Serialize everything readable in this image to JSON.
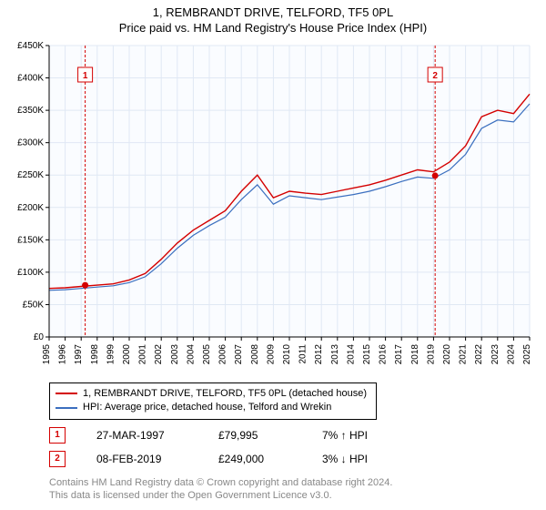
{
  "title_line1": "1, REMBRANDT DRIVE, TELFORD, TF5 0PL",
  "title_line2": "Price paid vs. HM Land Registry's House Price Index (HPI)",
  "chart": {
    "type": "line",
    "background_color": "#ffffff",
    "plot_bg_color": "#f5f9ff",
    "plot_bg_alpha": 0.55,
    "grid_color": "#e0e8f4",
    "axis_color": "#000000",
    "x_years": [
      1995,
      1996,
      1997,
      1998,
      1999,
      2000,
      2001,
      2002,
      2003,
      2004,
      2005,
      2006,
      2007,
      2008,
      2009,
      2010,
      2011,
      2012,
      2013,
      2014,
      2015,
      2016,
      2017,
      2018,
      2019,
      2020,
      2021,
      2022,
      2023,
      2024,
      2025
    ],
    "ylim": [
      0,
      450000
    ],
    "ytick_step": 50000,
    "ytick_labels": [
      "£0",
      "£50K",
      "£100K",
      "£150K",
      "£200K",
      "£250K",
      "£300K",
      "£350K",
      "£400K",
      "£450K"
    ],
    "tick_fontsize": 10,
    "x_tick_rotation": -90,
    "series": [
      {
        "name": "1, REMBRANDT DRIVE, TELFORD, TF5 0PL (detached house)",
        "color": "#d40000",
        "width": 1.4,
        "values": [
          75,
          76,
          78,
          80,
          82,
          88,
          98,
          120,
          145,
          165,
          180,
          195,
          225,
          250,
          215,
          225,
          222,
          220,
          225,
          230,
          235,
          242,
          250,
          258,
          255,
          270,
          295,
          340,
          350,
          345,
          375
        ]
      },
      {
        "name": "HPI: Average price, detached house, Telford and Wrekin",
        "color": "#3b6fbf",
        "width": 1.2,
        "values": [
          72,
          73,
          75,
          77,
          79,
          84,
          93,
          113,
          137,
          157,
          172,
          185,
          212,
          235,
          205,
          218,
          215,
          212,
          216,
          220,
          225,
          232,
          240,
          247,
          245,
          258,
          282,
          322,
          335,
          332,
          360
        ]
      }
    ],
    "zone_lines": [
      {
        "x_year": 1997.25,
        "color": "#d40000",
        "dash": "3,2"
      },
      {
        "x_year": 2019.1,
        "color": "#d40000",
        "dash": "3,2"
      }
    ],
    "markers": [
      {
        "num": "1",
        "x_year": 1997.25,
        "y_value": 79995,
        "color": "#d40000",
        "label_y": 405000
      },
      {
        "num": "2",
        "x_year": 2019.1,
        "y_value": 249000,
        "color": "#d40000",
        "label_y": 405000
      }
    ]
  },
  "legend": {
    "s1_label": "1, REMBRANDT DRIVE, TELFORD, TF5 0PL (detached house)",
    "s2_label": "HPI: Average price, detached house, Telford and Wrekin",
    "s1_color": "#d40000",
    "s2_color": "#3b6fbf"
  },
  "transactions": [
    {
      "num": "1",
      "date": "27-MAR-1997",
      "price": "£79,995",
      "delta": "7% ↑ HPI",
      "color": "#d40000"
    },
    {
      "num": "2",
      "date": "08-FEB-2019",
      "price": "£249,000",
      "delta": "3% ↓ HPI",
      "color": "#d40000"
    }
  ],
  "footer_line1": "Contains HM Land Registry data © Crown copyright and database right 2024.",
  "footer_line2": "This data is licensed under the Open Government Licence v3.0."
}
